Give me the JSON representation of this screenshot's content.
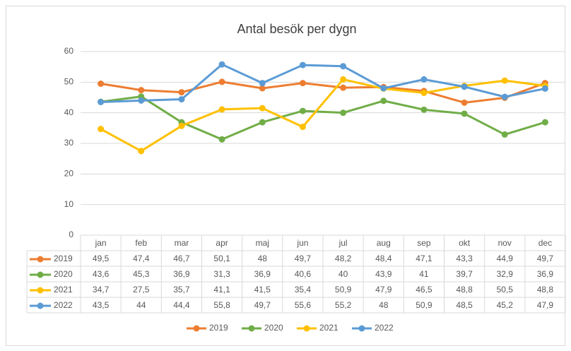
{
  "chart_data": {
    "type": "line",
    "title": "Antal besök per dygn",
    "categories": [
      "jan",
      "feb",
      "mar",
      "apr",
      "maj",
      "jun",
      "jul",
      "aug",
      "sep",
      "okt",
      "nov",
      "dec"
    ],
    "ylim": [
      0,
      60
    ],
    "yticks": [
      0,
      10,
      20,
      30,
      40,
      50,
      60
    ],
    "grid": true,
    "legend": "bottom",
    "series": [
      {
        "name": "2019",
        "color": "#ed7d31",
        "values": [
          49.5,
          47.4,
          46.7,
          50.1,
          48,
          49.7,
          48.2,
          48.4,
          47.1,
          43.3,
          44.9,
          49.7
        ],
        "value_labels": [
          "49,5",
          "47,4",
          "46,7",
          "50,1",
          "48",
          "49,7",
          "48,2",
          "48,4",
          "47,1",
          "43,3",
          "44,9",
          "49,7"
        ]
      },
      {
        "name": "2020",
        "color": "#70ad47",
        "values": [
          43.6,
          45.3,
          36.9,
          31.3,
          36.9,
          40.6,
          40,
          43.9,
          41,
          39.7,
          32.9,
          36.9
        ],
        "value_labels": [
          "43,6",
          "45,3",
          "36,9",
          "31,3",
          "36,9",
          "40,6",
          "40",
          "43,9",
          "41",
          "39,7",
          "32,9",
          "36,9"
        ]
      },
      {
        "name": "2021",
        "color": "#ffc000",
        "values": [
          34.7,
          27.5,
          35.7,
          41.1,
          41.5,
          35.4,
          50.9,
          47.9,
          46.5,
          48.8,
          50.5,
          48.8
        ],
        "value_labels": [
          "34,7",
          "27,5",
          "35,7",
          "41,1",
          "41,5",
          "35,4",
          "50,9",
          "47,9",
          "46,5",
          "48,8",
          "50,5",
          "48,8"
        ]
      },
      {
        "name": "2022",
        "color": "#5b9bd5",
        "values": [
          43.5,
          44,
          44.4,
          55.8,
          49.7,
          55.6,
          55.2,
          48,
          50.9,
          48.5,
          45.2,
          47.9
        ],
        "value_labels": [
          "43,5",
          "44",
          "44,4",
          "55,8",
          "49,7",
          "55,6",
          "55,2",
          "48",
          "50,9",
          "48,5",
          "45,2",
          "47,9"
        ]
      }
    ]
  }
}
